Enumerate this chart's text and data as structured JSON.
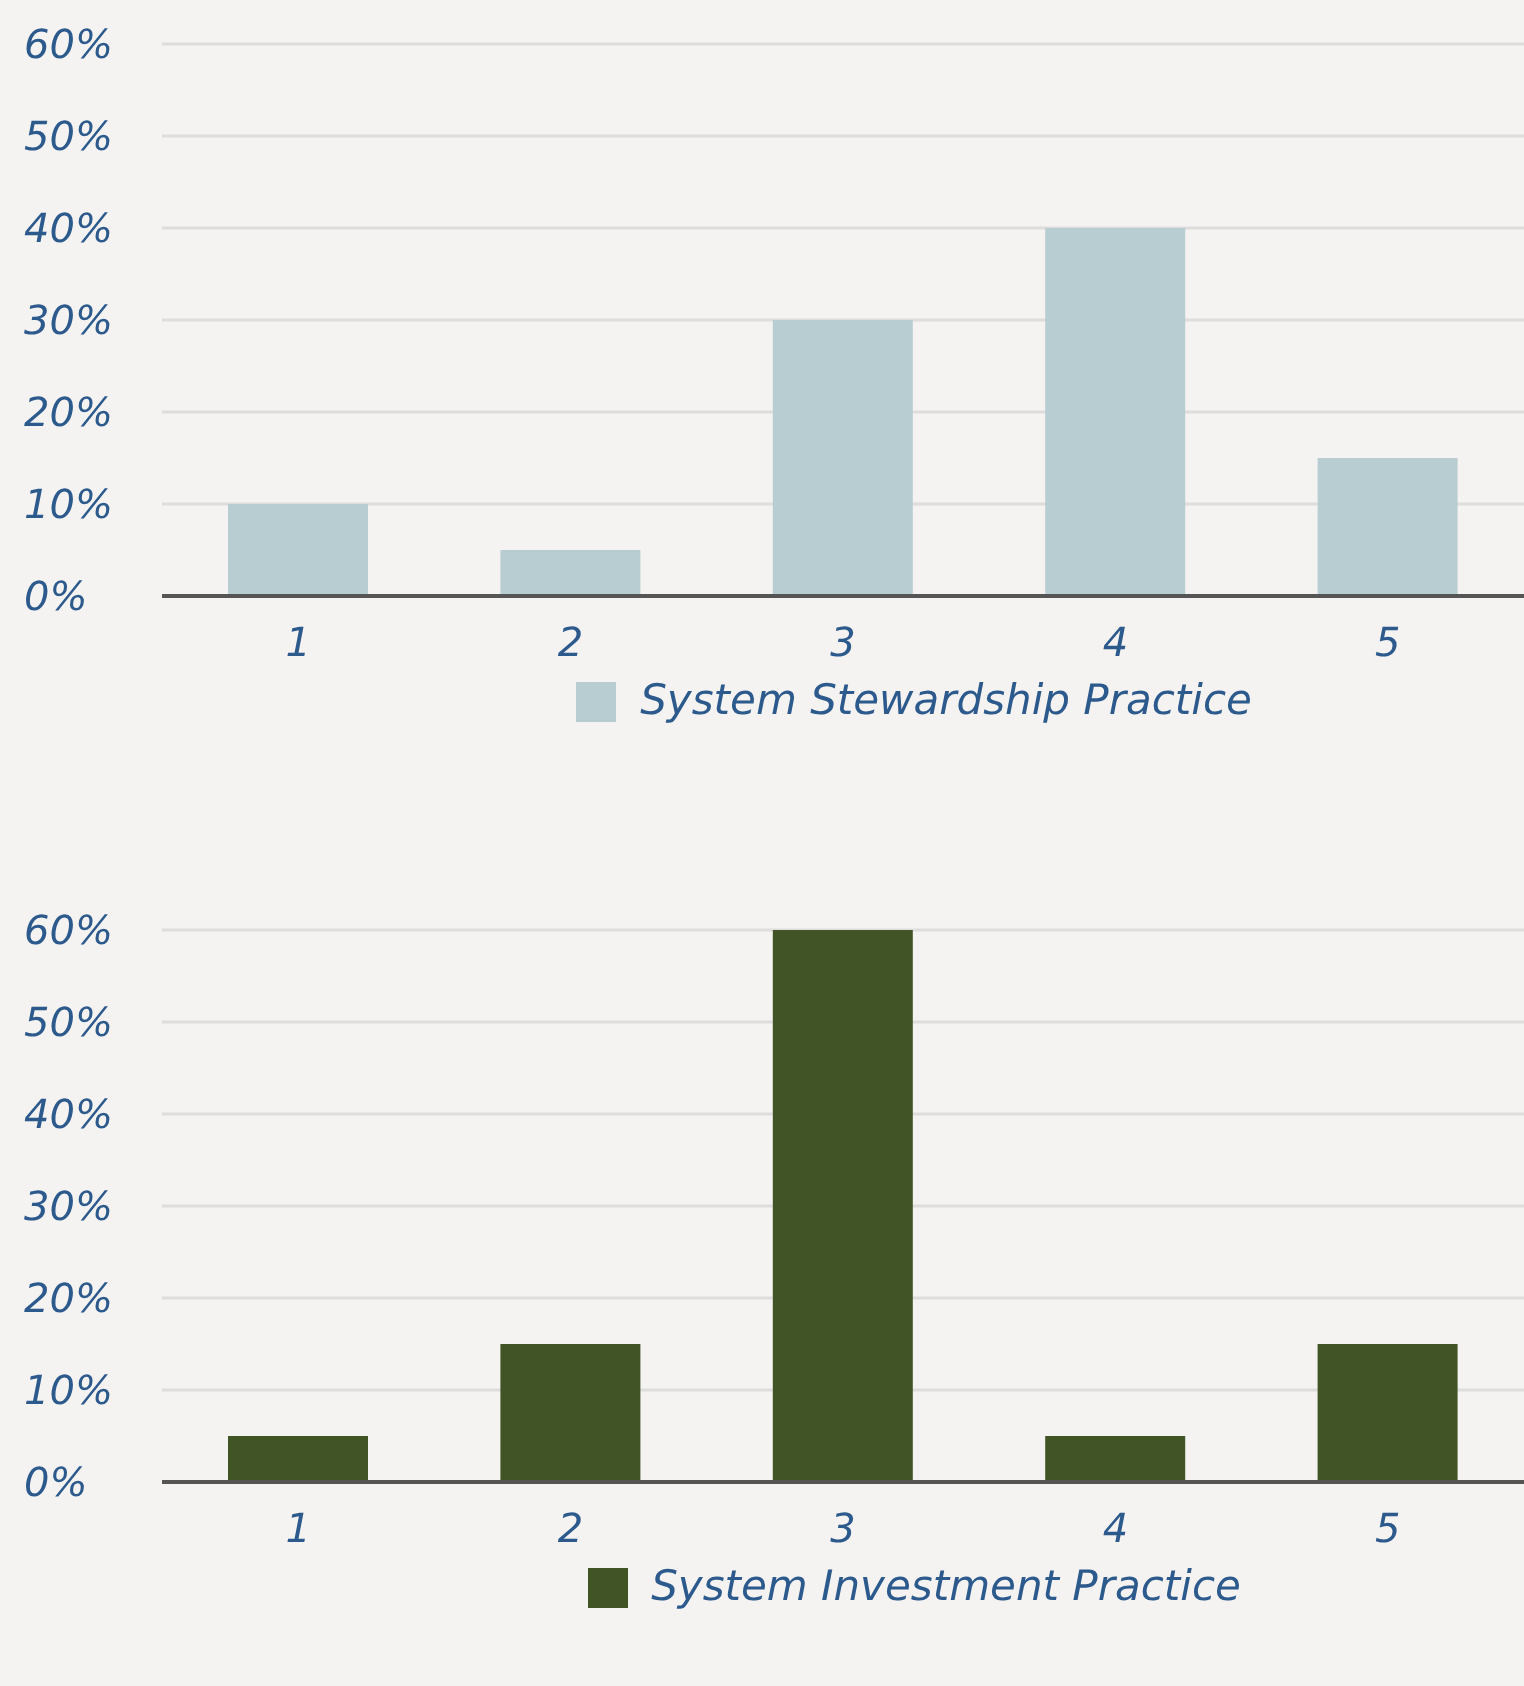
{
  "chart_data": [
    {
      "type": "bar",
      "categories": [
        "1",
        "2",
        "3",
        "4",
        "5"
      ],
      "series": [
        {
          "name": "System Stewardship Practice",
          "color": "#b8cdd2",
          "values": [
            10,
            5,
            30,
            40,
            15
          ]
        }
      ],
      "ylim": [
        0,
        60
      ],
      "yticks": [
        {
          "value": 0,
          "label": "0%"
        },
        {
          "value": 10,
          "label": "10%"
        },
        {
          "value": 20,
          "label": "20%"
        },
        {
          "value": 30,
          "label": "30%"
        },
        {
          "value": 40,
          "label": "40%"
        },
        {
          "value": 50,
          "label": "50%"
        },
        {
          "value": 60,
          "label": "60%"
        }
      ],
      "grid": "y",
      "legend": "bottom"
    },
    {
      "type": "bar",
      "categories": [
        "1",
        "2",
        "3",
        "4",
        "5"
      ],
      "series": [
        {
          "name": "System Investment Practice",
          "color": "#405426",
          "values": [
            5,
            15,
            60,
            5,
            15
          ]
        }
      ],
      "ylim": [
        0,
        60
      ],
      "yticks": [
        {
          "value": 0,
          "label": "0%"
        },
        {
          "value": 10,
          "label": "10%"
        },
        {
          "value": 20,
          "label": "20%"
        },
        {
          "value": 30,
          "label": "30%"
        },
        {
          "value": 40,
          "label": "40%"
        },
        {
          "value": 50,
          "label": "50%"
        },
        {
          "value": 60,
          "label": "60%"
        }
      ],
      "grid": "y",
      "legend": "bottom"
    }
  ]
}
